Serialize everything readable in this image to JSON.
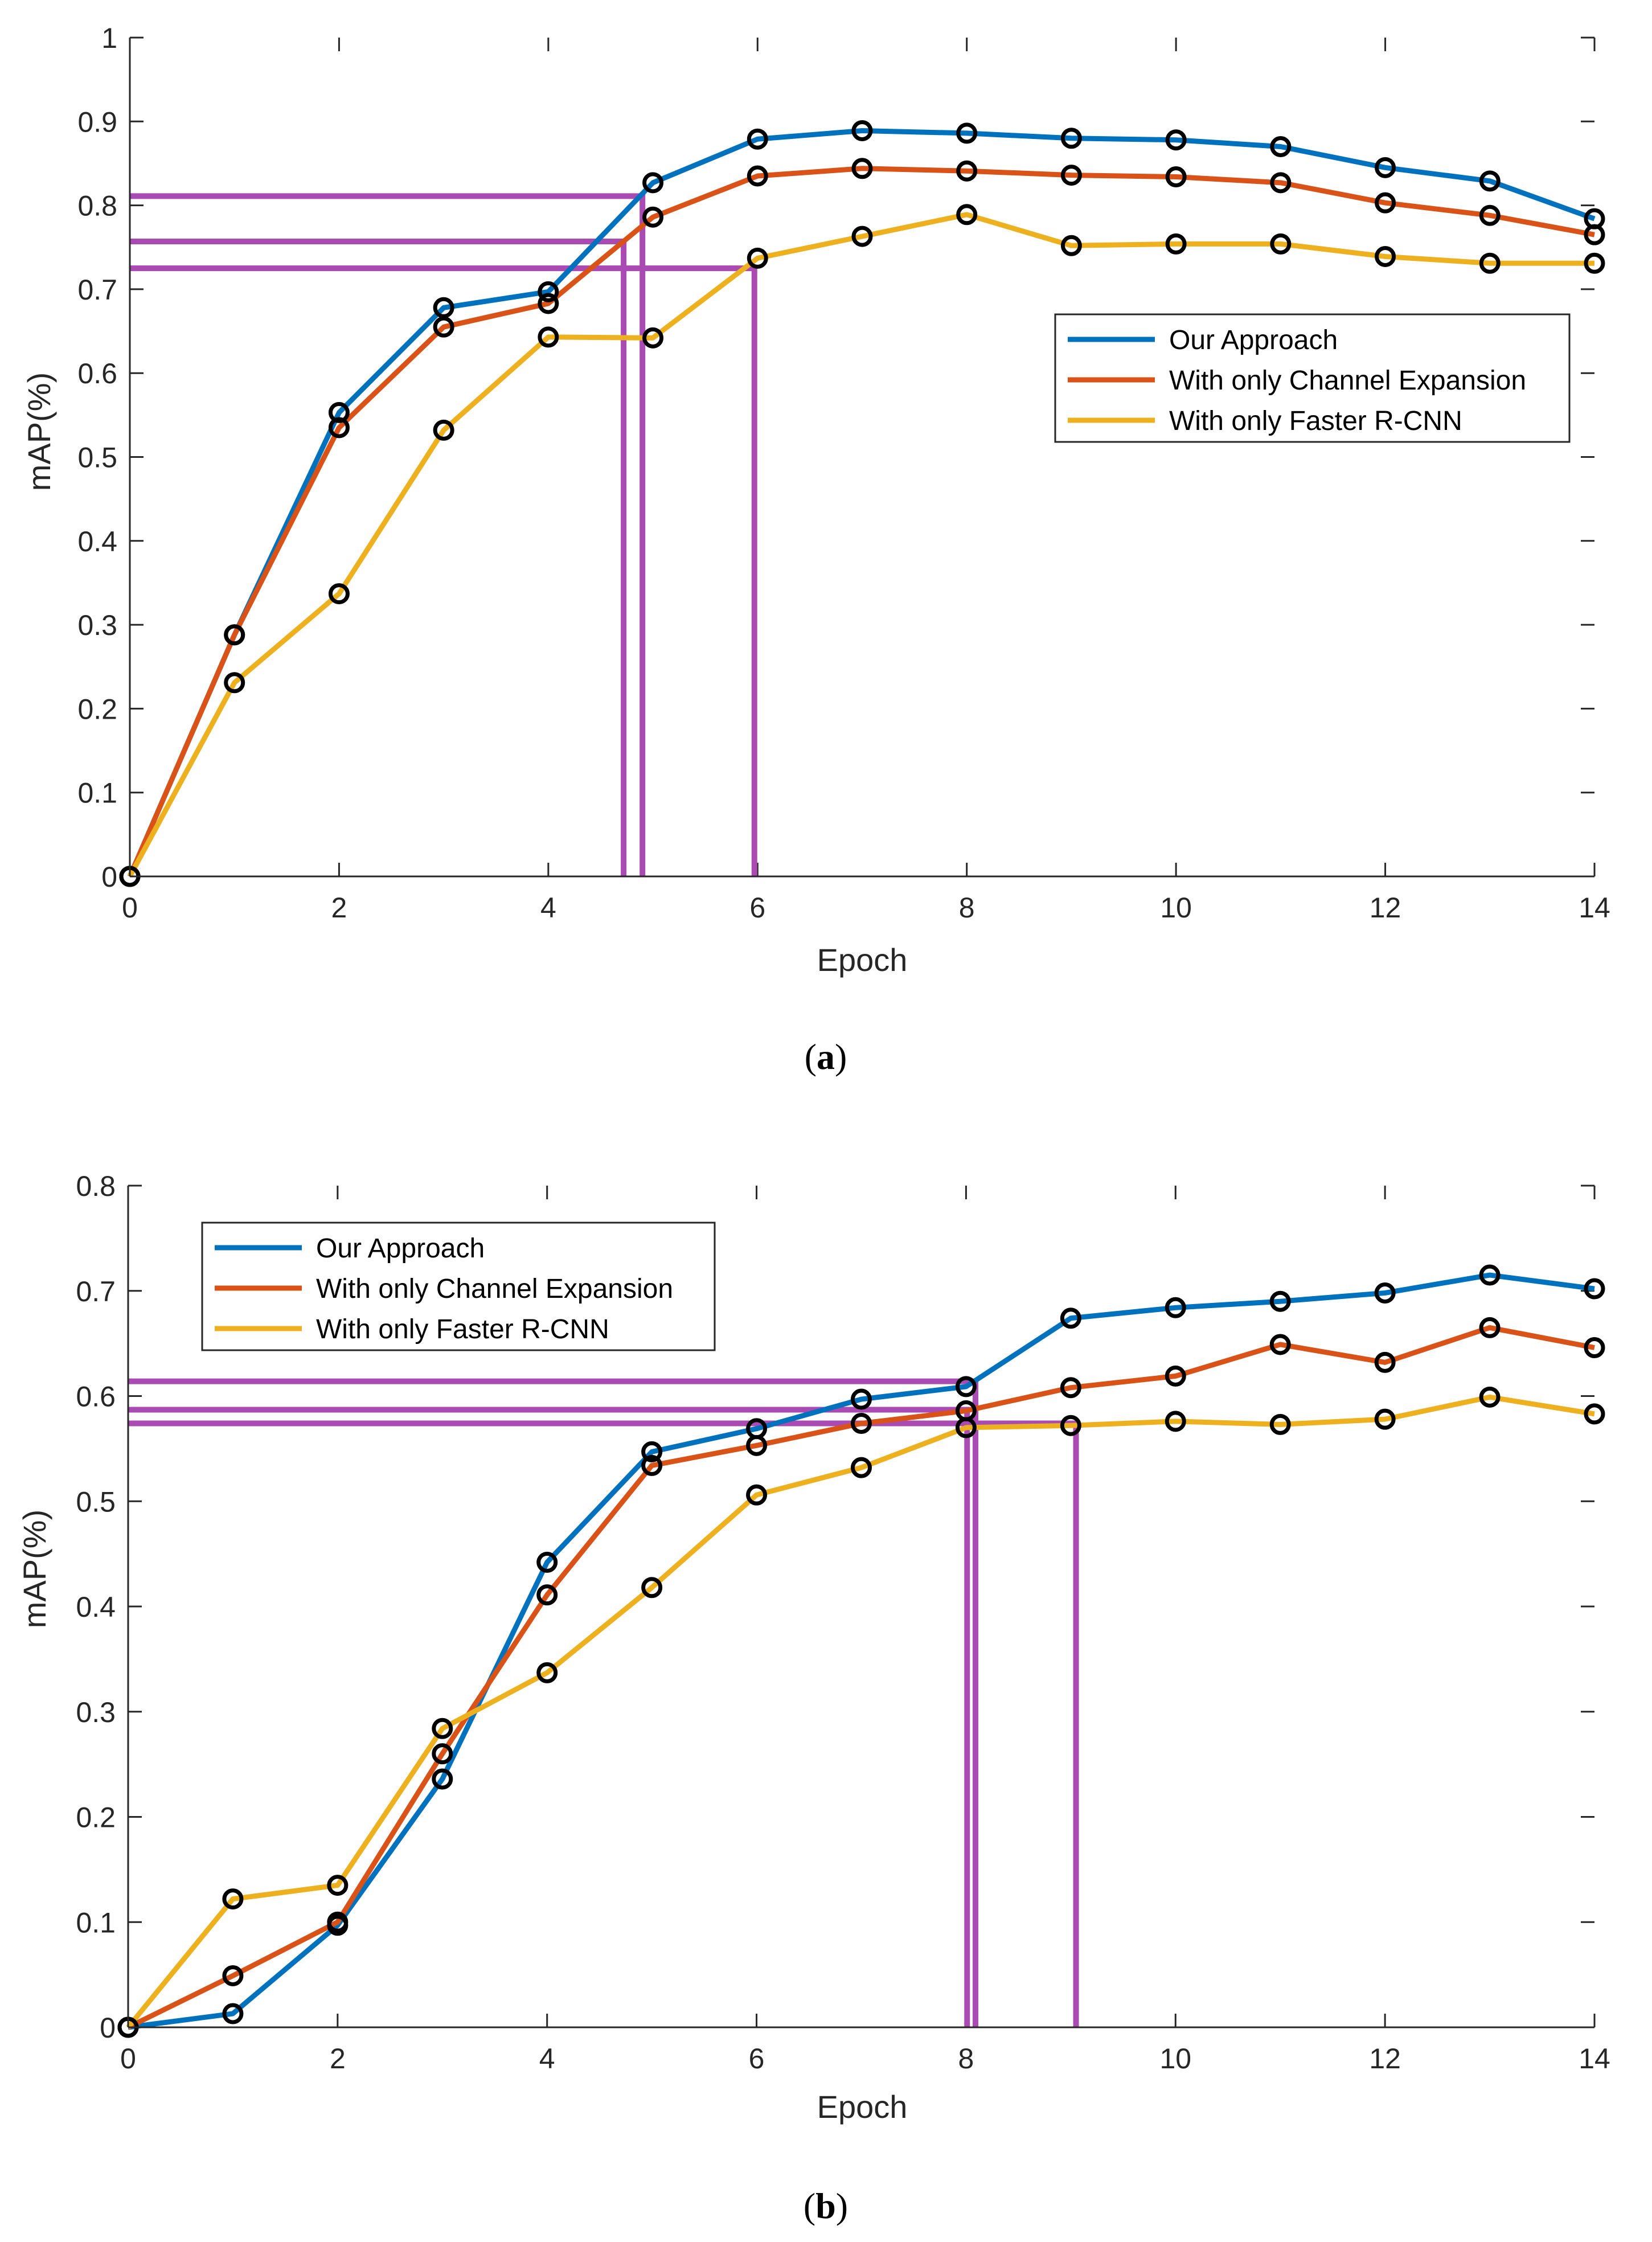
{
  "colors": {
    "series": [
      "#0072BD",
      "#D95319",
      "#EDB120"
    ],
    "marker": "#000000",
    "guide": "#A94BB3",
    "axis": "#262626"
  },
  "chart_data": [
    {
      "type": "line",
      "caption_letter": "a",
      "xlabel": "Epoch",
      "ylabel": "mAP(%)",
      "xlim": [
        0,
        14
      ],
      "ylim": [
        0,
        1
      ],
      "xticks": [
        "0",
        "2",
        "4",
        "6",
        "8",
        "10",
        "12",
        "14"
      ],
      "yticks": [
        "0",
        "0.1",
        "0.2",
        "0.3",
        "0.4",
        "0.5",
        "0.6",
        "0.7",
        "0.8",
        "0.9",
        "1"
      ],
      "legend_position": "right",
      "x": [
        0,
        1,
        2,
        3,
        4,
        5,
        6,
        7,
        8,
        9,
        10,
        11,
        12,
        13,
        14
      ],
      "series": [
        {
          "name": "Our Approach",
          "values": [
            0,
            0.288,
            0.553,
            0.678,
            0.697,
            0.827,
            0.879,
            0.889,
            0.886,
            0.88,
            0.878,
            0.87,
            0.845,
            0.829,
            0.784
          ]
        },
        {
          "name": "With only Channel Expansion",
          "values": [
            0,
            0.288,
            0.535,
            0.655,
            0.683,
            0.786,
            0.835,
            0.844,
            0.841,
            0.836,
            0.834,
            0.827,
            0.803,
            0.788,
            0.765
          ]
        },
        {
          "name": "With only Faster R-CNN",
          "values": [
            0,
            0.231,
            0.337,
            0.532,
            0.643,
            0.642,
            0.737,
            0.763,
            0.789,
            0.752,
            0.754,
            0.754,
            0.739,
            0.731,
            0.731
          ]
        }
      ],
      "reference_lines": [
        {
          "x": 4.9,
          "y": 0.811
        },
        {
          "x": 4.72,
          "y": 0.757
        },
        {
          "x": 5.97,
          "y": 0.725
        }
      ]
    },
    {
      "type": "line",
      "caption_letter": "b",
      "xlabel": "Epoch",
      "ylabel": "mAP(%)",
      "xlim": [
        0,
        14
      ],
      "ylim": [
        0,
        0.8
      ],
      "xticks": [
        "0",
        "2",
        "4",
        "6",
        "8",
        "10",
        "12",
        "14"
      ],
      "yticks": [
        "0",
        "0.1",
        "0.2",
        "0.3",
        "0.4",
        "0.5",
        "0.6",
        "0.7",
        "0.8"
      ],
      "legend_position": "top-left",
      "x": [
        0,
        1,
        2,
        3,
        4,
        5,
        6,
        7,
        8,
        9,
        10,
        11,
        12,
        13,
        14
      ],
      "series": [
        {
          "name": "Our Approach",
          "values": [
            0,
            0.013,
            0.097,
            0.236,
            0.442,
            0.547,
            0.569,
            0.597,
            0.609,
            0.674,
            0.684,
            0.69,
            0.698,
            0.715,
            0.702
          ]
        },
        {
          "name": "With only Channel Expansion",
          "values": [
            0,
            0.049,
            0.1,
            0.26,
            0.411,
            0.534,
            0.553,
            0.574,
            0.586,
            0.608,
            0.619,
            0.649,
            0.632,
            0.665,
            0.646
          ]
        },
        {
          "name": "With only Faster R-CNN",
          "values": [
            0,
            0.122,
            0.135,
            0.284,
            0.337,
            0.418,
            0.506,
            0.532,
            0.57,
            0.572,
            0.576,
            0.573,
            0.578,
            0.599,
            0.583
          ]
        }
      ],
      "reference_lines": [
        {
          "x": 8.09,
          "y": 0.614
        },
        {
          "x": 8.01,
          "y": 0.587
        },
        {
          "x": 9.05,
          "y": 0.574
        }
      ]
    }
  ]
}
